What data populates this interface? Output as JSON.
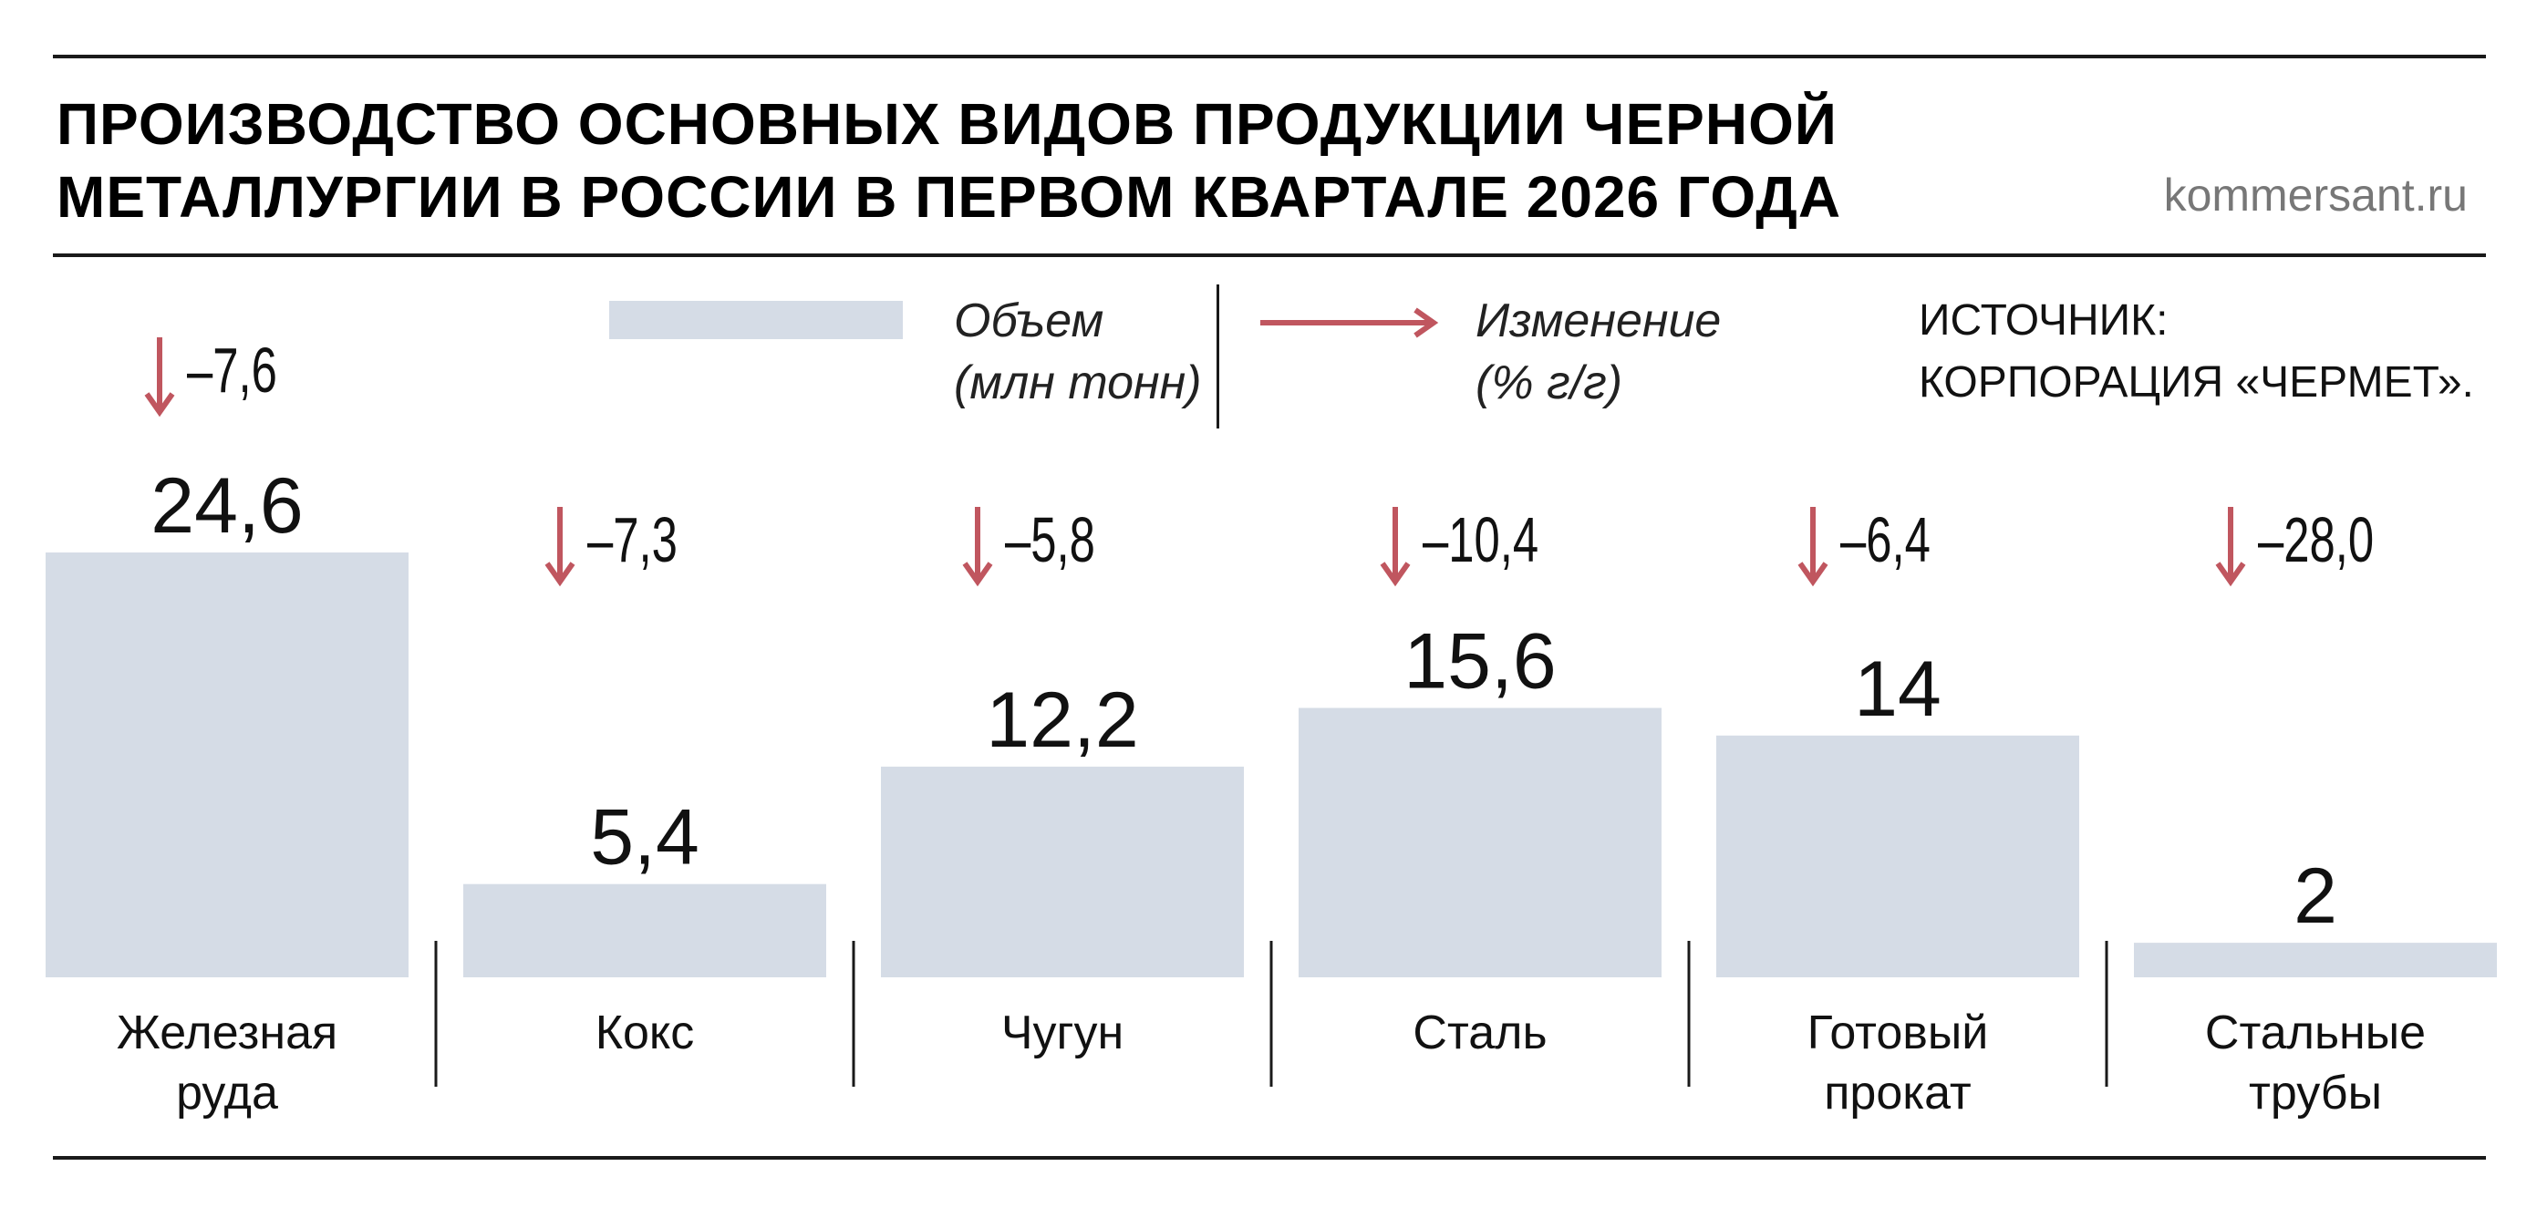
{
  "header": {
    "title_line1": "ПРОИЗВОДСТВО ОСНОВНЫХ ВИДОВ ПРОДУКЦИИ ЧЕРНОЙ",
    "title_line2": "МЕТАЛЛУРГИИ В РОССИИ В ПЕРВОМ КВАРТАЛЕ 2026 ГОДА",
    "site": "kommersant.ru"
  },
  "legend": {
    "volume_line1": "Объем",
    "volume_line2": "(млн тонн)",
    "change_line1": "Изменение",
    "change_line2": "(% г/г)",
    "source_line1": "ИСТОЧНИК:",
    "source_line2": "КОРПОРАЦИЯ «ЧЕРМЕТ»."
  },
  "colors": {
    "bar": "#d5dce6",
    "arrow": "#c0565f",
    "text": "#111111",
    "rule": "#1a1a1a",
    "site": "#777777"
  },
  "chart_data": {
    "type": "bar",
    "categories": [
      [
        "Железная",
        "руда"
      ],
      [
        "Кокс"
      ],
      [
        "Чугун"
      ],
      [
        "Сталь"
      ],
      [
        "Готовый",
        "прокат"
      ],
      [
        "Стальные",
        "трубы"
      ]
    ],
    "values": [
      24.6,
      5.4,
      12.2,
      15.6,
      14,
      2
    ],
    "value_labels": [
      "24,6",
      "5,4",
      "12,2",
      "15,6",
      "14",
      "2"
    ],
    "change": [
      -7.6,
      -7.3,
      -5.8,
      -10.4,
      -6.4,
      -28.0
    ],
    "change_labels": [
      "–7,6",
      "–7,3",
      "–5,8",
      "–10,4",
      "–6,4",
      "–28,0"
    ],
    "change_direction": "down",
    "ylim": [
      0,
      24.6
    ],
    "grid": false
  }
}
